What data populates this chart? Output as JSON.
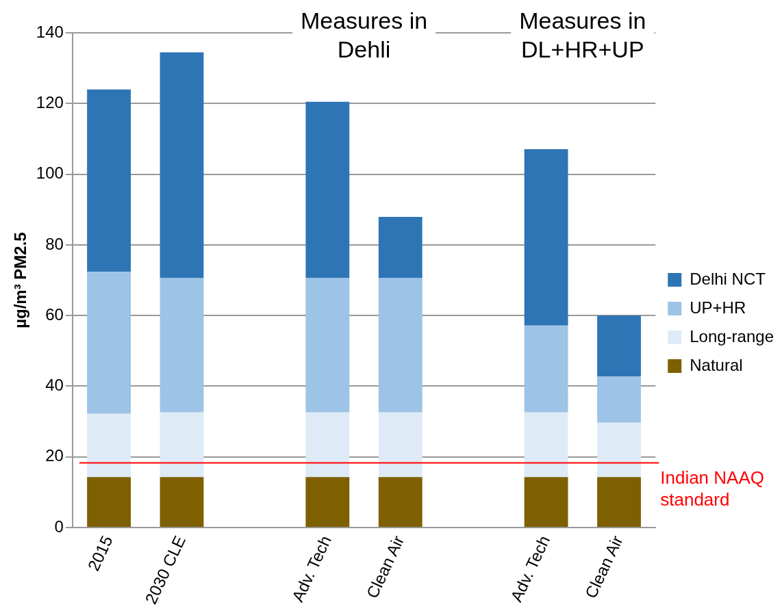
{
  "chart_data": {
    "type": "bar",
    "stacked": true,
    "ylabel": "µg/m³ PM2.5",
    "categories": [
      "2015",
      "2030 CLE",
      null,
      "Adv. Tech",
      "Clean Air",
      null,
      "Adv. Tech",
      "Clean Air"
    ],
    "series": [
      {
        "name": "Natural",
        "color": "#7f6000",
        "values": [
          14.3,
          14.3,
          null,
          14.3,
          14.3,
          null,
          14.3,
          14.3
        ]
      },
      {
        "name": "Long-range",
        "color": "#deebf7",
        "values": [
          17.9,
          18.3,
          null,
          18.3,
          18.3,
          null,
          18.3,
          15.4
        ]
      },
      {
        "name": "UP+HR",
        "color": "#9dc3e6",
        "values": [
          40.2,
          38,
          null,
          38,
          38,
          null,
          24.6,
          13.1
        ]
      },
      {
        "name": "Delhi NCT",
        "color": "#2e75b6",
        "values": [
          51.6,
          63.9,
          null,
          49.9,
          17.3,
          null,
          49.9,
          17.2
        ]
      }
    ],
    "ylim": [
      0,
      140
    ],
    "yticks": [
      0,
      20,
      40,
      60,
      80,
      100,
      120,
      140
    ],
    "grid": "y",
    "legend": "right",
    "ref_lines": [
      {
        "axis": "y",
        "value": 18.3,
        "label": "Indian NAAQ standard",
        "color": "#ff0000"
      }
    ],
    "annotations": [
      "Measures in Dehli",
      "Measures in DL+HR+UP"
    ]
  }
}
